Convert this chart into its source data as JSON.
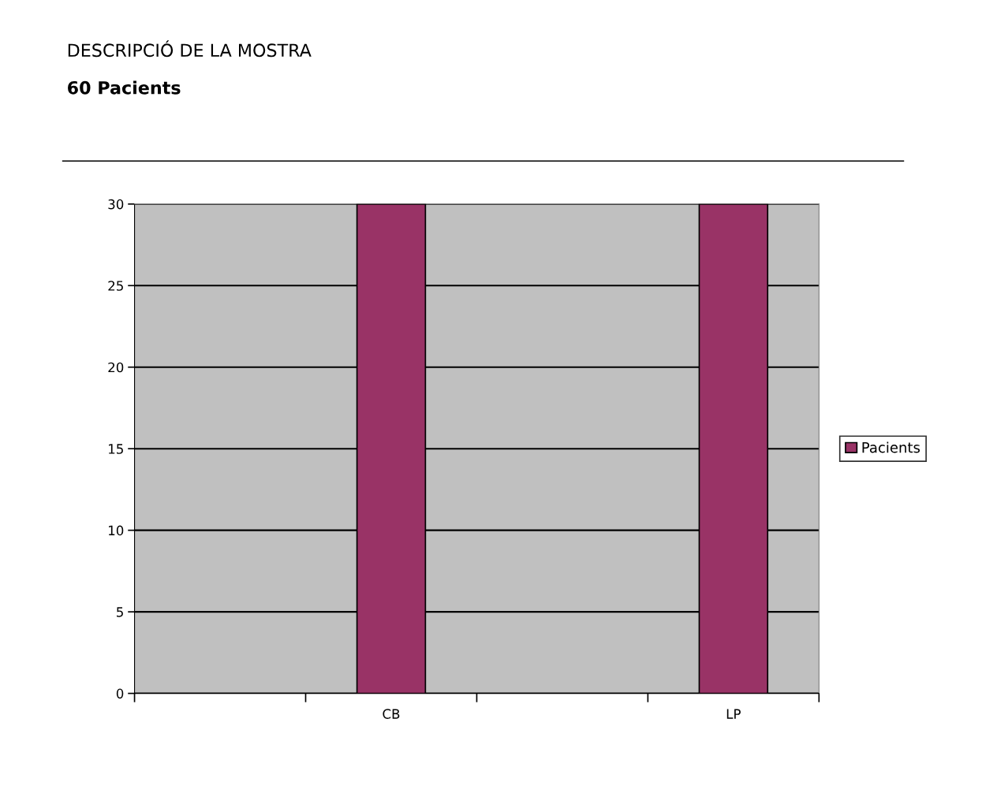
{
  "chart_data": {
    "type": "bar",
    "title": "DESCRIPCIÓ DE LA MOSTRA",
    "subtitle": "60 Pacients",
    "categories": [
      null,
      "CB",
      null,
      "LP"
    ],
    "series": [
      {
        "name": "Pacients",
        "color": "#993366",
        "values": [
          null,
          30,
          null,
          30
        ]
      }
    ],
    "ylim": [
      0,
      30
    ],
    "yticks": [
      0,
      5,
      10,
      15,
      20,
      25,
      30
    ],
    "grid": "y",
    "legend": "right"
  }
}
